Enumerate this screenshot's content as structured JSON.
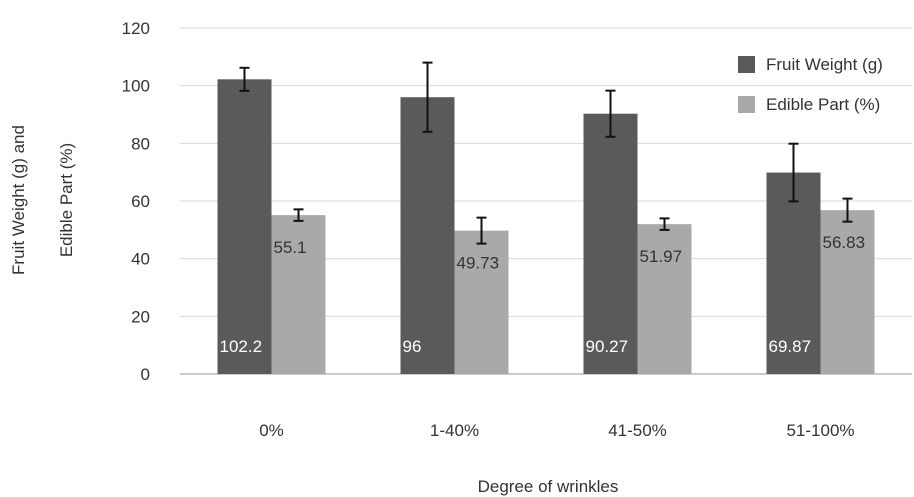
{
  "chart_data": {
    "type": "bar",
    "categories": [
      "0%",
      "1-40%",
      "41-50%",
      "51-100%"
    ],
    "series": [
      {
        "name": "Fruit Weight (g)",
        "values": [
          102.2,
          96,
          90.27,
          69.87
        ],
        "error": [
          4,
          12,
          8,
          10
        ],
        "labels": [
          "102.2",
          "96",
          "90.27",
          "69.87"
        ],
        "color": "#5a5a5a"
      },
      {
        "name": "Edible Part (%)",
        "values": [
          55.1,
          49.73,
          51.97,
          56.83
        ],
        "error": [
          2,
          4.5,
          2,
          4
        ],
        "labels": [
          "55.1",
          "49.73",
          "51.97",
          "56.83"
        ],
        "color": "#a9a9a9"
      }
    ],
    "ylim": [
      0,
      120
    ],
    "yticks": [
      "0",
      "20",
      "40",
      "60",
      "80",
      "100",
      "120"
    ],
    "xlabel": "Degree of wrinkles",
    "ylabel_line1": "Fruit Weight (g) and",
    "ylabel_line2": "Edible Part (%)",
    "legend_position": "top-right",
    "grid": "horizontal"
  }
}
